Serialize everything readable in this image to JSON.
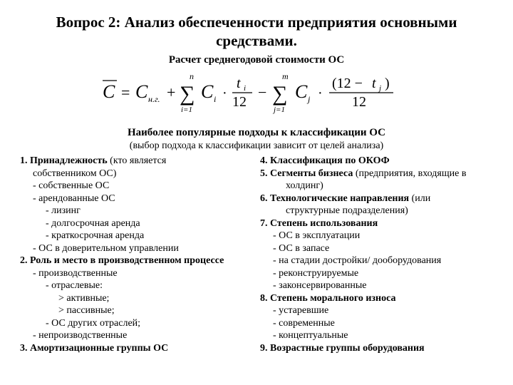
{
  "title": "Вопрос 2: Анализ обеспеченности предприятия основными средствами.",
  "subtitle": "Расчет среднегодовой стоимости ОС",
  "formula": {
    "text": "C̄ = C_{н.г.} + Σ_{i=1}^{n} C_i · t_i/12 − Σ_{j=1}^{m} C_j · (12 − t_j)/12",
    "font_family": "Times New Roman, serif",
    "color": "#000000"
  },
  "approaches_title": "Наиболее популярные подходы к классификации ОС",
  "approaches_sub": "(выбор подхода к классификации зависит от целей анализа)",
  "left": [
    {
      "lvl": 0,
      "b": true,
      "pre": "1.    ",
      "t": "Принадлежность",
      "tail": " (кто является"
    },
    {
      "lvl": 1,
      "t": "собственником ОС)"
    },
    {
      "lvl": 1,
      "t": "- собственные ОС"
    },
    {
      "lvl": 1,
      "t": "- арендованные ОС"
    },
    {
      "lvl": 2,
      "t": "- лизинг"
    },
    {
      "lvl": 2,
      "t": "- долгосрочная аренда"
    },
    {
      "lvl": 2,
      "t": "- краткосрочная аренда"
    },
    {
      "lvl": 1,
      "t": "- ОС в доверительном управлении"
    },
    {
      "lvl": 0,
      "b": true,
      "pre": "2. ",
      "t": "Роль и место в производственном процессе"
    },
    {
      "lvl": 1,
      "t": "- производственные"
    },
    {
      "lvl": 2,
      "t": "- отраслевые:"
    },
    {
      "lvl": 3,
      "t": "> активные;"
    },
    {
      "lvl": 3,
      "t": "> пассивные;"
    },
    {
      "lvl": 2,
      "t": "- ОС других отраслей;"
    },
    {
      "lvl": 1,
      "t": "- непроизводственные"
    },
    {
      "lvl": 0,
      "b": true,
      "pre": "3. ",
      "t": "Амортизационные группы ОС"
    }
  ],
  "right": [
    {
      "lvl": 0,
      "b": true,
      "pre": "4. ",
      "t": "Классификация по ОКОФ"
    },
    {
      "lvl": 0,
      "b": true,
      "pre": "5. ",
      "t": "Сегменты бизнеса",
      "tail": " (предприятия, входящие в"
    },
    {
      "lvl": 2,
      "t": "холдинг)"
    },
    {
      "lvl": 0,
      "b": true,
      "pre": "6. ",
      "t": "Технологические направления",
      "tail": " (или"
    },
    {
      "lvl": 2,
      "t": "структурные подразделения)"
    },
    {
      "lvl": 0,
      "b": true,
      "pre": "7. ",
      "t": "Степень использования"
    },
    {
      "lvl": 1,
      "t": "- ОС в эксплуатации"
    },
    {
      "lvl": 1,
      "t": "- ОС в запасе"
    },
    {
      "lvl": 1,
      "t": "- на стадии достройки/ дооборудования"
    },
    {
      "lvl": 1,
      "t": "- реконструируемые"
    },
    {
      "lvl": 1,
      "t": "- законсервированные"
    },
    {
      "lvl": 0,
      "b": true,
      "pre": "8. ",
      "t": "Степень морального износа"
    },
    {
      "lvl": 1,
      "t": "- устаревшие"
    },
    {
      "lvl": 1,
      "t": "- современные"
    },
    {
      "lvl": 1,
      "t": "- концептуальные"
    },
    {
      "lvl": 0,
      "b": true,
      "pre": "9. ",
      "t": "Возрастные группы оборудования"
    }
  ]
}
